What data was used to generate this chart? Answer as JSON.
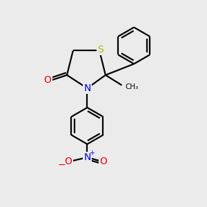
{
  "bg_color": "#ebebeb",
  "atom_colors": {
    "S": "#b8b800",
    "N": "#0000ee",
    "O": "#ee0000",
    "C": "#000000"
  },
  "figsize": [
    3.0,
    3.0
  ],
  "dpi": 100,
  "lw": 1.6
}
